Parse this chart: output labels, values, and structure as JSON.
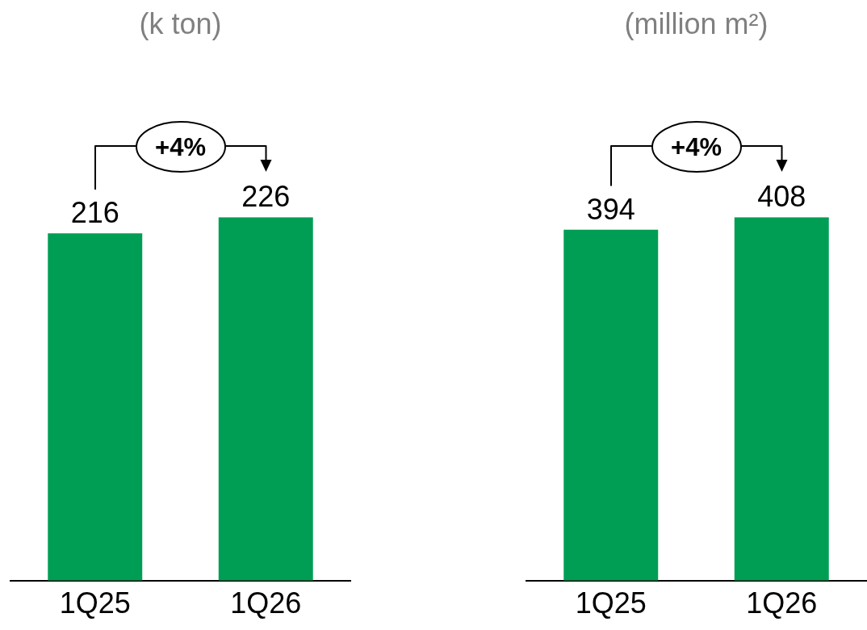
{
  "chart_data": [
    {
      "type": "bar",
      "title": "(k ton)",
      "categories": [
        "1Q25",
        "1Q26"
      ],
      "values": [
        216,
        226
      ],
      "color": "#009e55",
      "tick_labels": "x",
      "data_labels": true,
      "annotations": [
        "+4%"
      ]
    },
    {
      "type": "bar",
      "title": "(million m²)",
      "categories": [
        "1Q25",
        "1Q26"
      ],
      "values": [
        394,
        408
      ],
      "color": "#009e55",
      "tick_labels": "x",
      "data_labels": true,
      "annotations": [
        "+4%"
      ]
    }
  ]
}
